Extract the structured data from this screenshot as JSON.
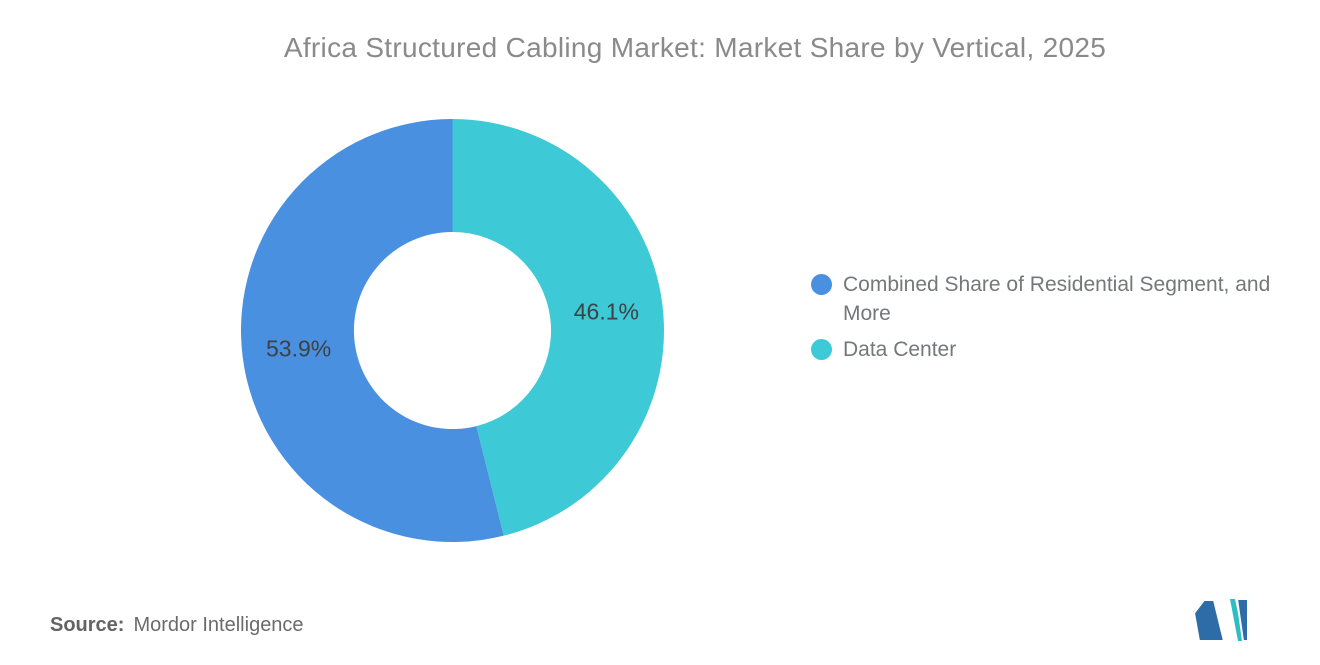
{
  "header": {
    "title": "Africa Structured Cabling Market: Market Share by Vertical, 2025"
  },
  "footer": {
    "source_label": "Source:",
    "source_value": "Mordor Intelligence"
  },
  "logo": {
    "name": "mordor-intelligence-logo",
    "teal": "#2fbdc4",
    "blue": "#2e6ca8"
  },
  "chart_data": {
    "type": "pie",
    "subtype": "donut",
    "title": "Africa Structured Cabling Market: Market Share by Vertical, 2025",
    "slices": [
      {
        "label": "Combined Share of Residential Segment, and More",
        "value": 53.9,
        "percent_label": "53.9%",
        "color": "#4a90e0"
      },
      {
        "label": "Data Center",
        "value": 46.1,
        "percent_label": "46.1%",
        "color": "#3dc9d6"
      }
    ],
    "start_angle_deg": -90,
    "direction": "counterclockwise",
    "inner_radius_ratio": 0.466,
    "label_radius_ratio": 0.733,
    "legend_position": "right",
    "grid": false,
    "data_label_color": "#3e4145",
    "legend_text_color": "#74777b",
    "title_color": "#8a8a8a",
    "background_color": "#ffffff"
  }
}
